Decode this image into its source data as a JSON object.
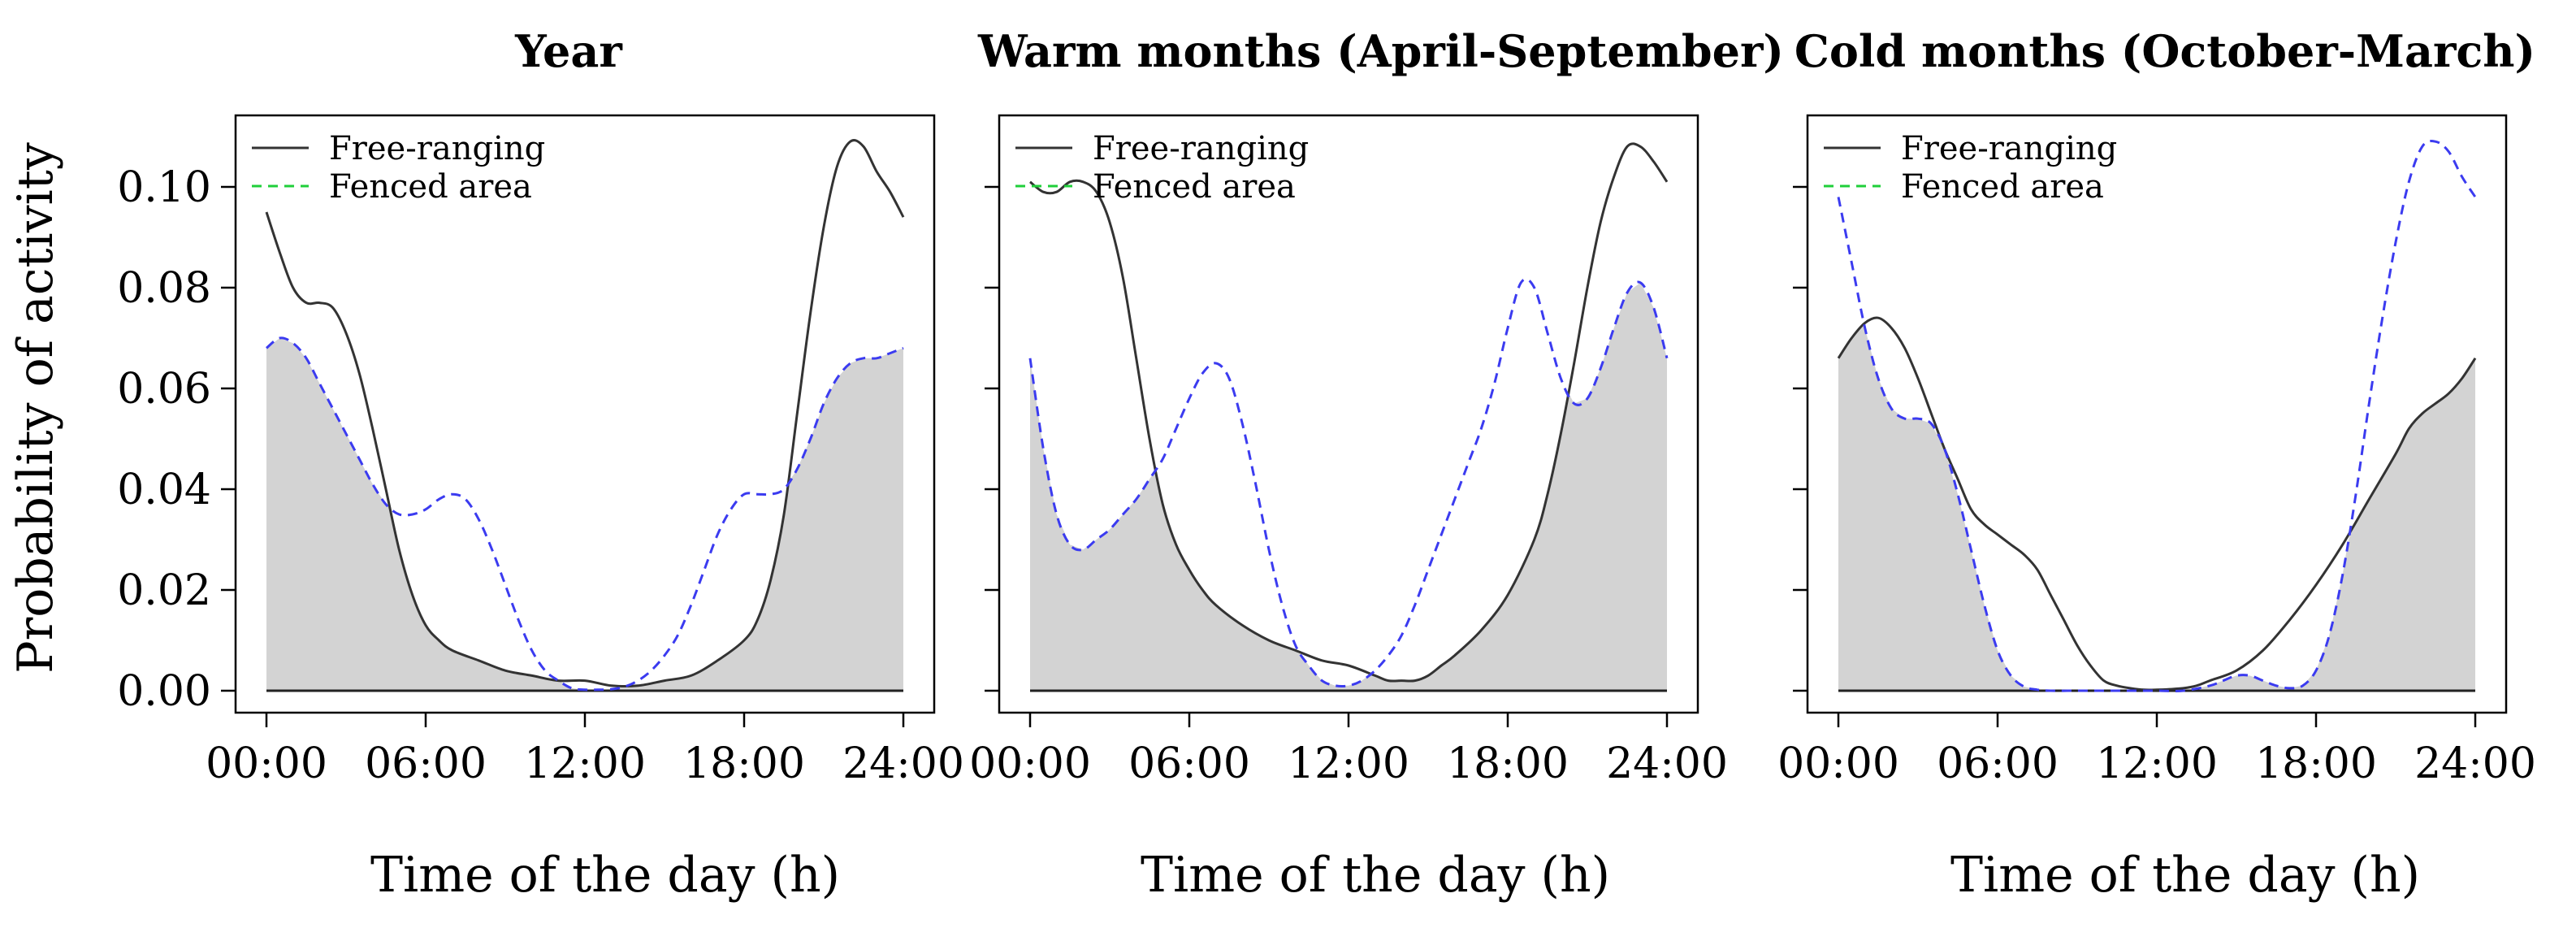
{
  "figure": {
    "ylabel": "Probability of activity",
    "xlabel": "Time of the day (h)",
    "legend_entries": [
      "Free-ranging",
      "Fenced area"
    ]
  },
  "colors": {
    "free_ranging": "#333333",
    "fenced_area": "#3b3bf0",
    "fenced_legend": "#1fcf3a",
    "overlap_fill": "#d3d3d3"
  },
  "chart_data": [
    {
      "type": "line",
      "title": "Year",
      "xlabel": "Time of the day (h)",
      "ylabel": "Probability of activity",
      "xlim": [
        0,
        24
      ],
      "ylim": [
        0,
        0.11
      ],
      "x_ticks": [
        "00:00",
        "06:00",
        "12:00",
        "18:00",
        "24:00"
      ],
      "y_ticks": [
        "0.00",
        "0.02",
        "0.04",
        "0.06",
        "0.08",
        "0.10"
      ],
      "legend": "top-left",
      "series": [
        {
          "name": "Free-ranging",
          "style": "solid",
          "x": [
            0,
            0.5,
            1,
            1.5,
            2,
            2.5,
            3,
            3.5,
            4,
            4.5,
            5,
            5.5,
            6,
            6.5,
            7,
            8,
            9,
            10,
            11,
            12,
            13,
            14,
            15,
            16,
            17,
            18,
            18.5,
            19,
            19.5,
            20,
            20.5,
            21,
            21.5,
            22,
            22.5,
            23,
            23.5,
            24
          ],
          "y": [
            0.095,
            0.087,
            0.08,
            0.077,
            0.077,
            0.076,
            0.071,
            0.063,
            0.052,
            0.04,
            0.028,
            0.019,
            0.013,
            0.01,
            0.008,
            0.006,
            0.004,
            0.003,
            0.002,
            0.002,
            0.001,
            0.001,
            0.002,
            0.003,
            0.006,
            0.01,
            0.014,
            0.022,
            0.035,
            0.055,
            0.075,
            0.092,
            0.104,
            0.109,
            0.108,
            0.103,
            0.099,
            0.094
          ]
        },
        {
          "name": "Fenced area",
          "style": "dashed",
          "x": [
            0,
            0.5,
            1,
            1.5,
            2,
            2.5,
            3,
            3.5,
            4,
            4.5,
            5,
            5.5,
            6,
            6.5,
            7,
            7.5,
            8,
            8.5,
            9,
            9.5,
            10,
            10.5,
            11,
            11.5,
            12,
            12.5,
            13,
            13.5,
            14,
            14.5,
            15,
            15.5,
            16,
            16.5,
            17,
            17.5,
            18,
            18.5,
            19,
            19.5,
            20,
            20.5,
            21,
            21.5,
            22,
            22.5,
            23,
            23.5,
            24
          ],
          "y": [
            0.068,
            0.07,
            0.069,
            0.066,
            0.061,
            0.056,
            0.051,
            0.046,
            0.041,
            0.037,
            0.035,
            0.035,
            0.036,
            0.038,
            0.039,
            0.038,
            0.034,
            0.028,
            0.021,
            0.014,
            0.008,
            0.004,
            0.002,
            0.0005,
            0.0002,
            0.0002,
            0.0003,
            0.0008,
            0.002,
            0.004,
            0.007,
            0.011,
            0.017,
            0.024,
            0.031,
            0.036,
            0.039,
            0.039,
            0.039,
            0.04,
            0.044,
            0.05,
            0.057,
            0.062,
            0.065,
            0.066,
            0.066,
            0.067,
            0.068
          ]
        }
      ]
    },
    {
      "type": "line",
      "title": "Warm months (April-September)",
      "xlabel": "Time of the day (h)",
      "xlim": [
        0,
        24
      ],
      "ylim": [
        0,
        0.11
      ],
      "x_ticks": [
        "00:00",
        "06:00",
        "12:00",
        "18:00",
        "24:00"
      ],
      "legend": "top-left",
      "series": [
        {
          "name": "Free-ranging",
          "style": "solid",
          "x": [
            0,
            0.5,
            1,
            1.5,
            2,
            2.5,
            3,
            3.5,
            4,
            4.5,
            5,
            5.5,
            6,
            6.5,
            7,
            8,
            9,
            10,
            11,
            12,
            13,
            13.5,
            14,
            14.5,
            15,
            15.5,
            16,
            17,
            18,
            19,
            19.5,
            20,
            20.5,
            21,
            21.5,
            22,
            22.5,
            23,
            23.5,
            24
          ],
          "y": [
            0.101,
            0.099,
            0.099,
            0.101,
            0.101,
            0.099,
            0.093,
            0.082,
            0.066,
            0.05,
            0.037,
            0.029,
            0.024,
            0.02,
            0.017,
            0.013,
            0.01,
            0.008,
            0.006,
            0.005,
            0.003,
            0.002,
            0.002,
            0.002,
            0.003,
            0.005,
            0.007,
            0.012,
            0.019,
            0.03,
            0.039,
            0.051,
            0.065,
            0.08,
            0.093,
            0.102,
            0.108,
            0.108,
            0.105,
            0.101
          ]
        },
        {
          "name": "Fenced area",
          "style": "dashed",
          "x": [
            0,
            0.5,
            1,
            1.5,
            2,
            2.5,
            3,
            3.5,
            4,
            4.5,
            5,
            5.5,
            6,
            6.5,
            7,
            7.5,
            8,
            8.5,
            9,
            9.5,
            10,
            10.5,
            11,
            11.5,
            12,
            12.5,
            13,
            13.5,
            14,
            14.5,
            15,
            15.5,
            16,
            16.5,
            17,
            17.5,
            18,
            18.5,
            19,
            19.5,
            20,
            20.5,
            21,
            21.5,
            22,
            22.5,
            23,
            23.5,
            24
          ],
          "y": [
            0.066,
            0.048,
            0.035,
            0.029,
            0.028,
            0.03,
            0.032,
            0.035,
            0.038,
            0.042,
            0.046,
            0.052,
            0.058,
            0.063,
            0.065,
            0.062,
            0.053,
            0.041,
            0.028,
            0.017,
            0.009,
            0.005,
            0.002,
            0.001,
            0.001,
            0.002,
            0.004,
            0.007,
            0.011,
            0.017,
            0.024,
            0.031,
            0.038,
            0.045,
            0.052,
            0.061,
            0.072,
            0.081,
            0.08,
            0.071,
            0.062,
            0.057,
            0.058,
            0.064,
            0.072,
            0.079,
            0.081,
            0.076,
            0.066
          ]
        }
      ]
    },
    {
      "type": "line",
      "title": "Cold months (October-March)",
      "xlabel": "Time of the day (h)",
      "xlim": [
        0,
        24
      ],
      "ylim": [
        0,
        0.11
      ],
      "x_ticks": [
        "00:00",
        "06:00",
        "12:00",
        "18:00",
        "24:00"
      ],
      "legend": "top-left",
      "series": [
        {
          "name": "Free-ranging",
          "style": "solid",
          "x": [
            0,
            0.5,
            1,
            1.5,
            2,
            2.5,
            3,
            3.5,
            4,
            4.5,
            5,
            5.5,
            6,
            6.5,
            7,
            7.5,
            8,
            8.5,
            9,
            9.5,
            10,
            10.5,
            11,
            11.5,
            12,
            12.5,
            13,
            13.5,
            14,
            15,
            16,
            17,
            18,
            19,
            20,
            21,
            21.5,
            22,
            22.5,
            23,
            23.5,
            24
          ],
          "y": [
            0.066,
            0.07,
            0.073,
            0.074,
            0.072,
            0.068,
            0.062,
            0.055,
            0.048,
            0.042,
            0.036,
            0.033,
            0.031,
            0.029,
            0.027,
            0.024,
            0.019,
            0.014,
            0.009,
            0.005,
            0.002,
            0.001,
            0.0005,
            0.0002,
            0.0002,
            0.0003,
            0.0005,
            0.001,
            0.002,
            0.004,
            0.008,
            0.014,
            0.021,
            0.029,
            0.038,
            0.047,
            0.052,
            0.055,
            0.057,
            0.059,
            0.062,
            0.066
          ]
        },
        {
          "name": "Fenced area",
          "style": "dashed",
          "x": [
            0,
            0.5,
            1,
            1.5,
            2,
            2.5,
            3,
            3.5,
            4,
            4.5,
            5,
            5.5,
            6,
            6.5,
            7,
            7.5,
            8,
            9,
            10,
            11,
            12,
            13,
            14,
            14.5,
            15,
            15.5,
            16,
            16.5,
            17,
            17.5,
            18,
            18.5,
            19,
            19.5,
            20,
            20.5,
            21,
            21.5,
            22,
            22.5,
            23,
            23.5,
            24
          ],
          "y": [
            0.098,
            0.085,
            0.072,
            0.062,
            0.056,
            0.054,
            0.054,
            0.053,
            0.048,
            0.039,
            0.028,
            0.017,
            0.008,
            0.003,
            0.0008,
            0.0002,
            0.0,
            0.0,
            0.0,
            0.0,
            0.0,
            0.0,
            0.001,
            0.002,
            0.003,
            0.003,
            0.002,
            0.001,
            0.0005,
            0.001,
            0.004,
            0.011,
            0.023,
            0.039,
            0.057,
            0.074,
            0.089,
            0.101,
            0.108,
            0.109,
            0.107,
            0.102,
            0.098
          ]
        }
      ]
    }
  ]
}
